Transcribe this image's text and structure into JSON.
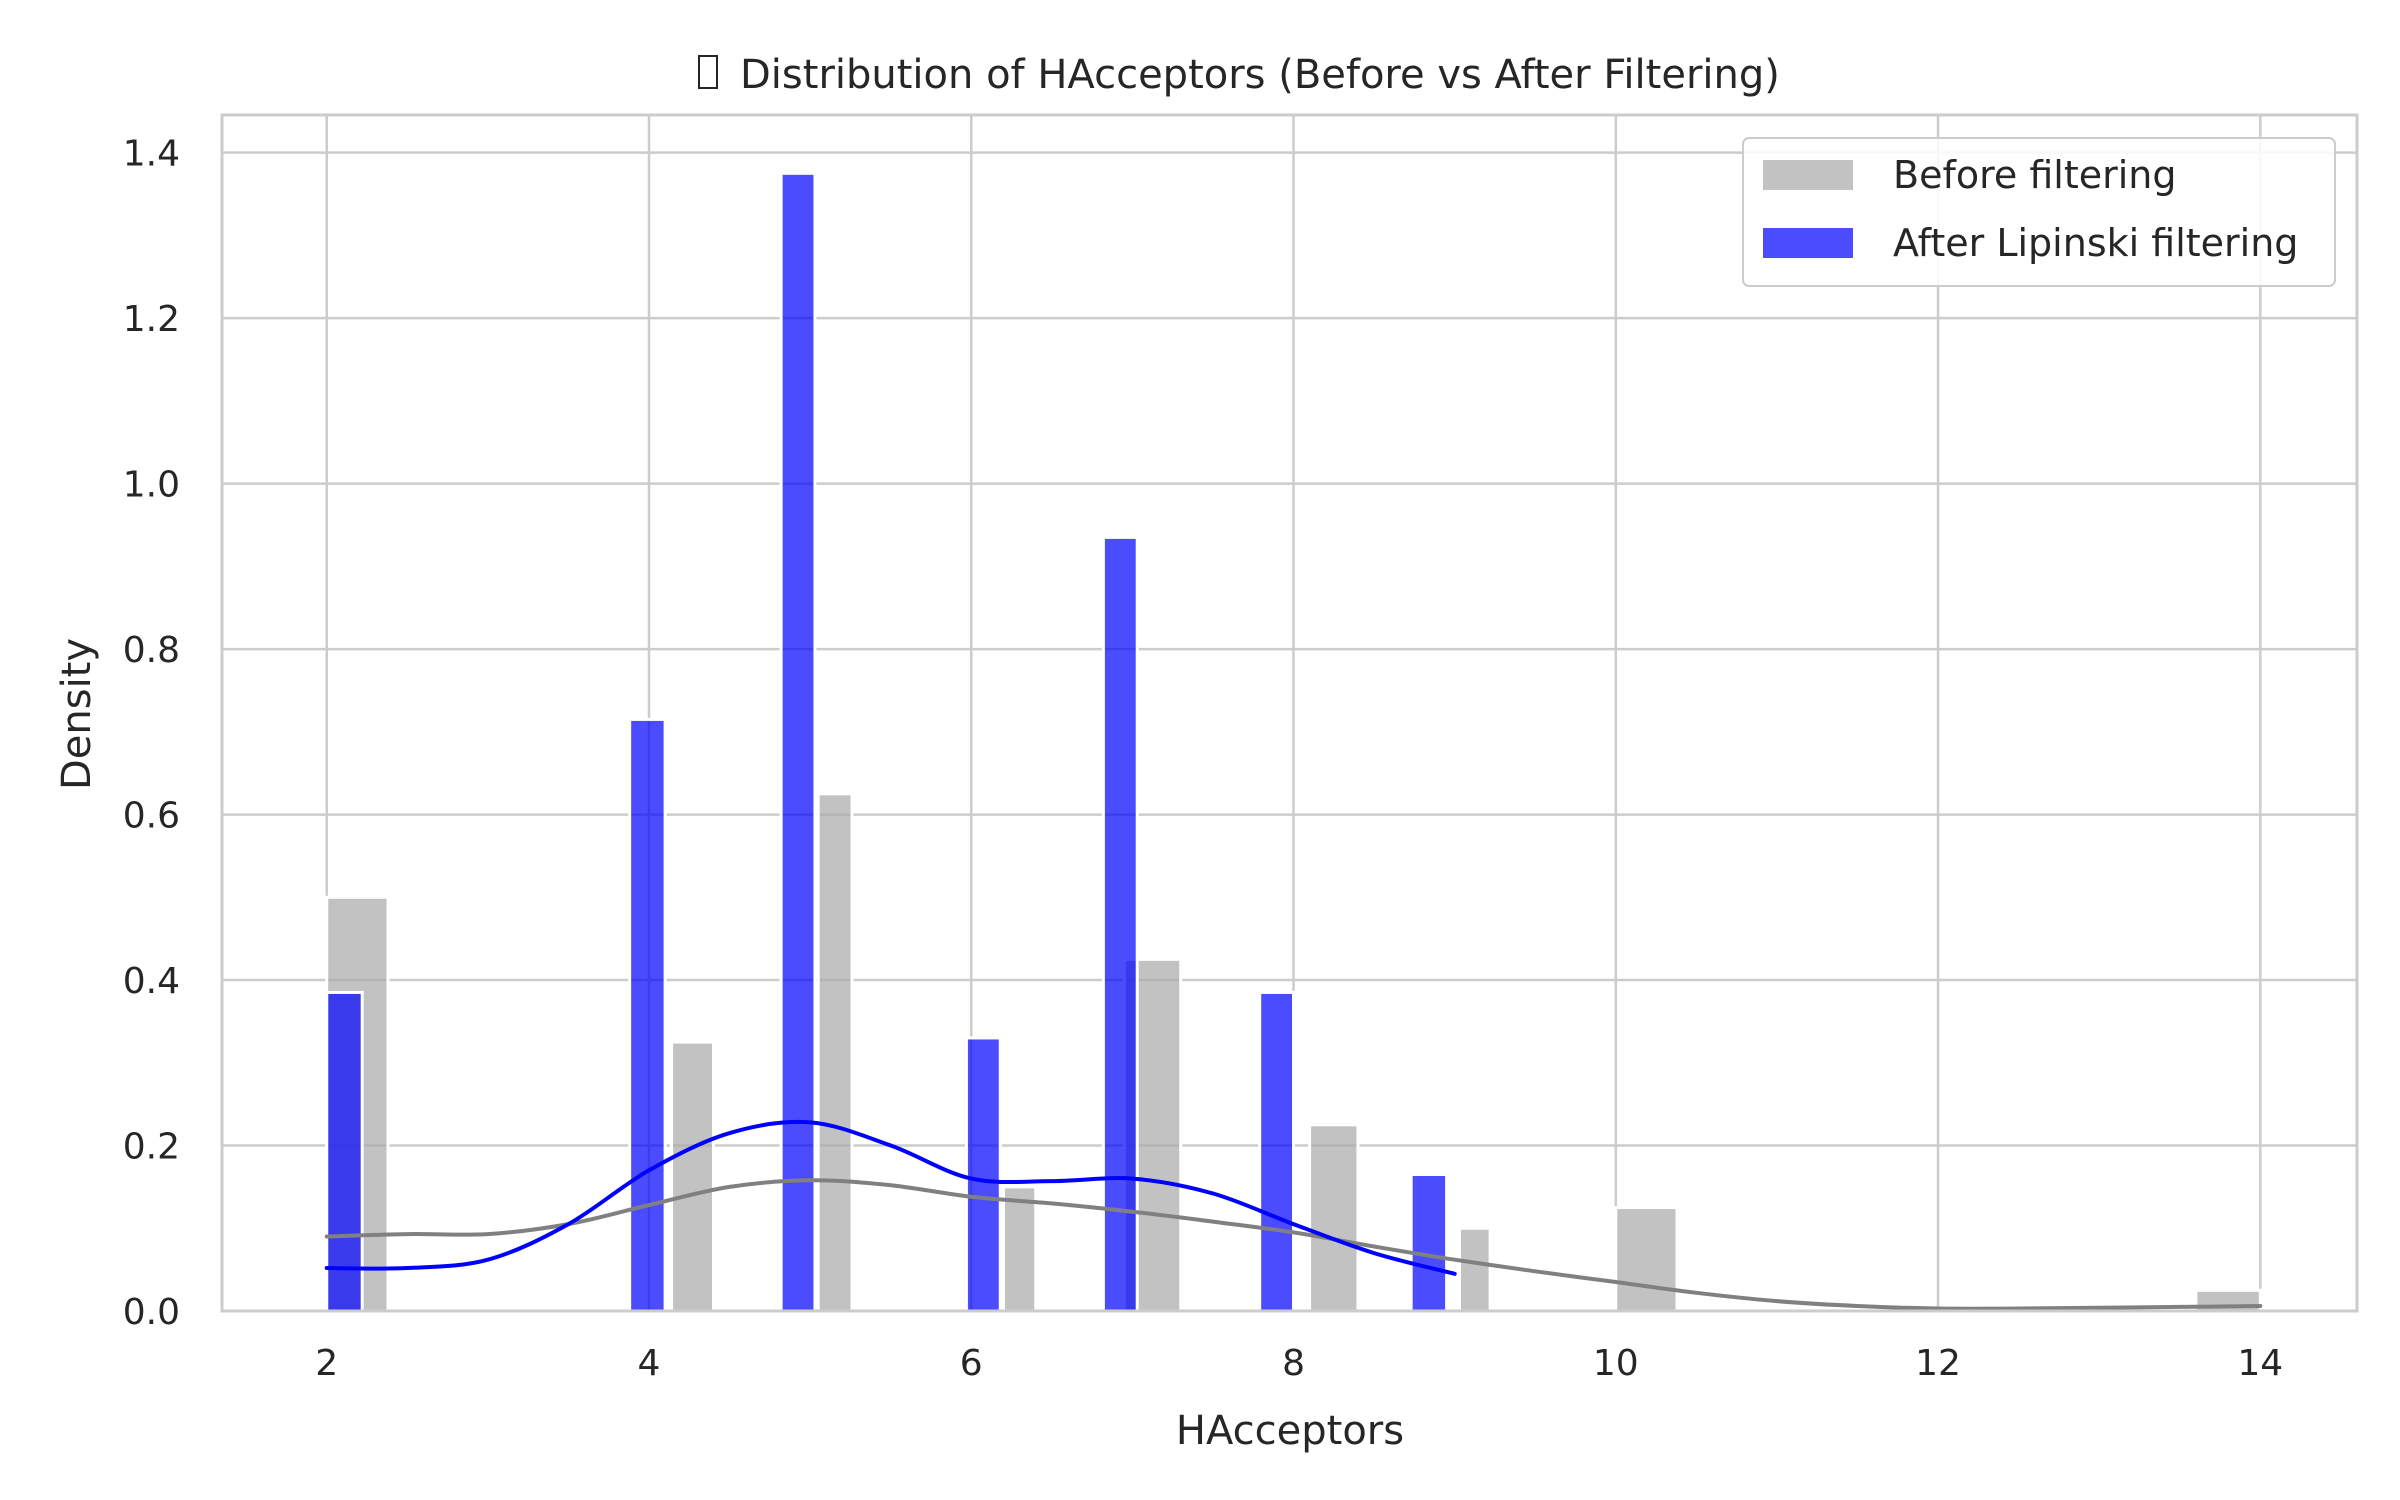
{
  "chart_data": {
    "type": "bar",
    "title": "Distribution of HAcceptors (Before vs After Filtering)",
    "title_icon": "missing-glyph-icon",
    "xlabel": "HAcceptors",
    "ylabel": "Density",
    "xlim": [
      1.35,
      14.6
    ],
    "ylim": [
      0,
      1.4455
    ],
    "xticks": [
      2,
      4,
      6,
      8,
      10,
      12,
      14
    ],
    "yticks": [
      0.0,
      0.2,
      0.4,
      0.6,
      0.8,
      1.0,
      1.2,
      1.4
    ],
    "xtick_labels": [
      "2",
      "4",
      "6",
      "8",
      "10",
      "12",
      "14"
    ],
    "ytick_labels": [
      "0.0",
      "0.2",
      "0.4",
      "0.6",
      "0.8",
      "1.0",
      "1.2",
      "1.4"
    ],
    "grid": true,
    "legend_position": "top-right",
    "series": [
      {
        "name": "Before filtering",
        "color": "#aaaaaa",
        "opacity": 0.72,
        "bins": [
          {
            "x0": 2.0,
            "x1": 2.38,
            "value": 0.5
          },
          {
            "x0": 4.14,
            "x1": 4.4,
            "value": 0.325
          },
          {
            "x0": 5.05,
            "x1": 5.26,
            "value": 0.625
          },
          {
            "x0": 6.2,
            "x1": 6.4,
            "value": 0.15
          },
          {
            "x0": 6.95,
            "x1": 7.3,
            "value": 0.425
          },
          {
            "x0": 8.1,
            "x1": 8.4,
            "value": 0.225
          },
          {
            "x0": 9.03,
            "x1": 9.22,
            "value": 0.1
          },
          {
            "x0": 10.0,
            "x1": 10.38,
            "value": 0.125
          },
          {
            "x0": 13.6,
            "x1": 14.0,
            "value": 0.025
          }
        ],
        "kde": {
          "color": "#808080",
          "x": [
            2.0,
            2.5,
            3.0,
            3.5,
            4.0,
            4.5,
            5.0,
            5.5,
            6.0,
            6.5,
            7.0,
            7.5,
            8.0,
            8.5,
            9.0,
            9.5,
            10.0,
            10.5,
            11.0,
            11.5,
            12.0,
            12.5,
            13.0,
            13.5,
            14.0
          ],
          "y": [
            0.09,
            0.093,
            0.093,
            0.105,
            0.128,
            0.15,
            0.158,
            0.152,
            0.138,
            0.13,
            0.12,
            0.108,
            0.095,
            0.078,
            0.062,
            0.048,
            0.035,
            0.022,
            0.012,
            0.006,
            0.003,
            0.003,
            0.004,
            0.005,
            0.006
          ]
        }
      },
      {
        "name": "After Lipinski filtering",
        "color": "#0000ff",
        "opacity": 0.7,
        "bins": [
          {
            "x0": 2.0,
            "x1": 2.22,
            "value": 0.385
          },
          {
            "x0": 3.88,
            "x1": 4.1,
            "value": 0.715
          },
          {
            "x0": 4.82,
            "x1": 5.03,
            "value": 1.375
          },
          {
            "x0": 5.97,
            "x1": 6.18,
            "value": 0.33
          },
          {
            "x0": 6.82,
            "x1": 7.03,
            "value": 0.935
          },
          {
            "x0": 7.79,
            "x1": 8.0,
            "value": 0.385
          },
          {
            "x0": 8.73,
            "x1": 8.95,
            "value": 0.165
          }
        ],
        "kde": {
          "color": "#0000ff",
          "x": [
            2.0,
            2.5,
            3.0,
            3.5,
            4.0,
            4.5,
            5.0,
            5.5,
            6.0,
            6.5,
            7.0,
            7.5,
            8.0,
            8.5,
            9.0
          ],
          "y": [
            0.052,
            0.052,
            0.062,
            0.105,
            0.17,
            0.215,
            0.228,
            0.2,
            0.16,
            0.157,
            0.16,
            0.142,
            0.105,
            0.07,
            0.045
          ]
        }
      }
    ]
  }
}
